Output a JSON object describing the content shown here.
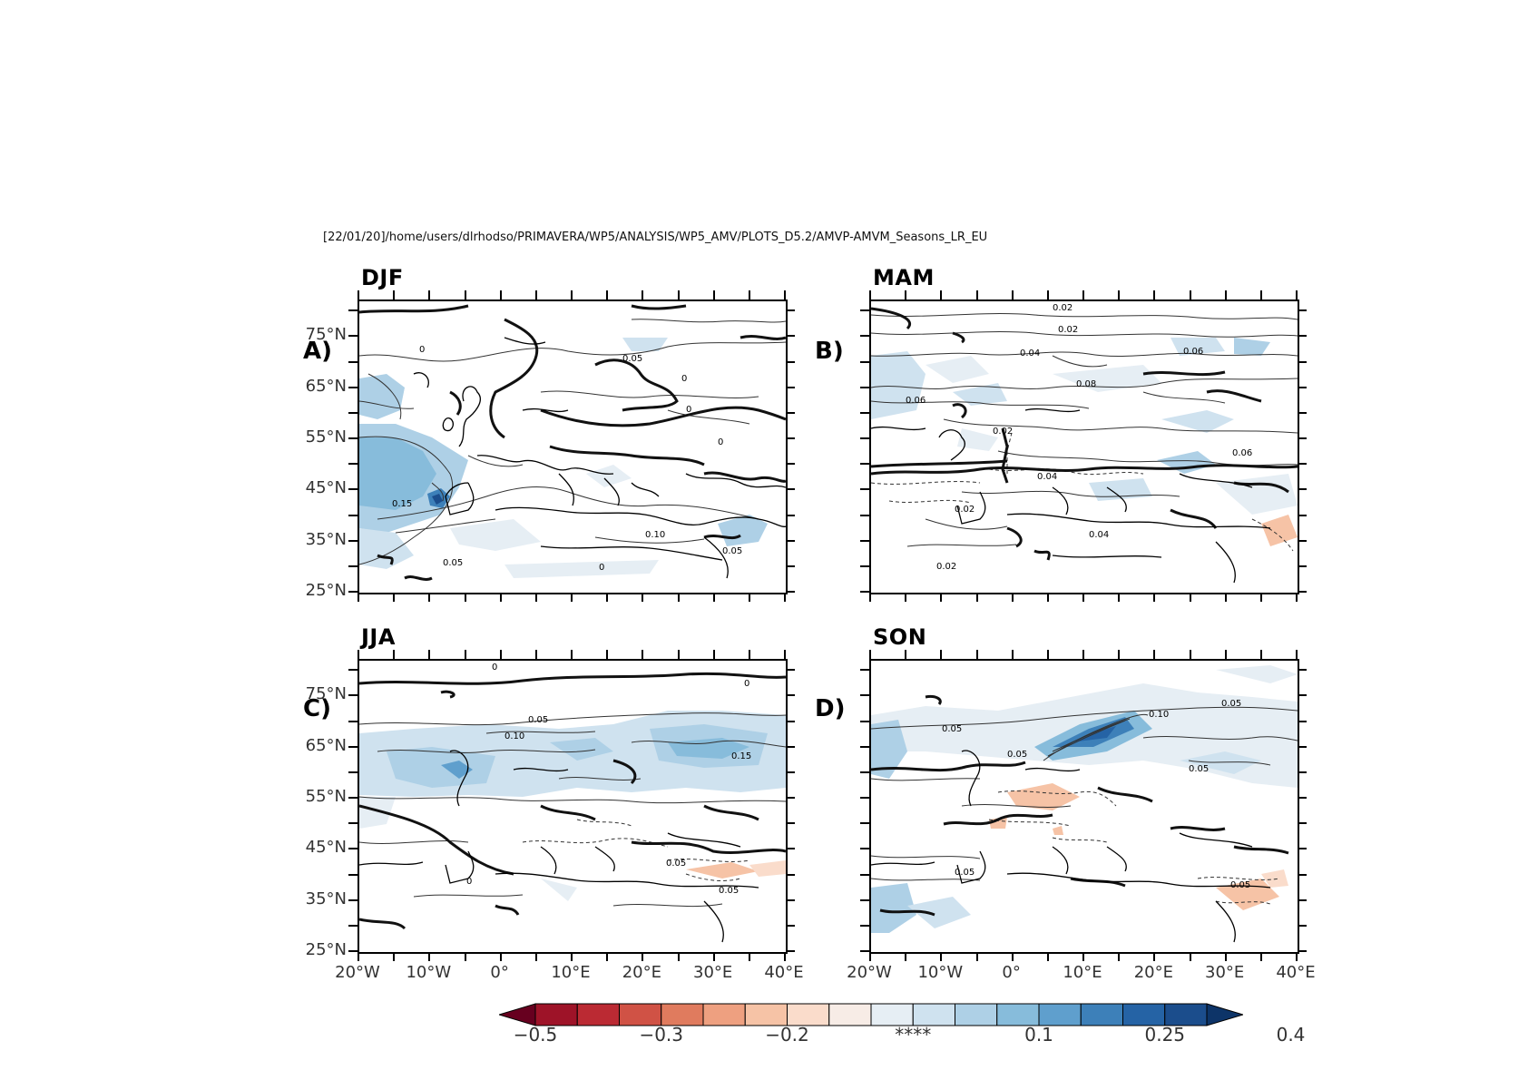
{
  "header_path": "[22/01/20]/home/users/dlrhodso/PRIMAVERA/WP5/ANALYSIS/WP5_AMV/PLOTS_D5.2/AMVP-AMVM_Seasons_LR_EU",
  "panels": [
    {
      "season": "DJF",
      "letter": "A)"
    },
    {
      "season": "MAM",
      "letter": "B)"
    },
    {
      "season": "JJA",
      "letter": "C)"
    },
    {
      "season": "SON",
      "letter": "D)"
    }
  ],
  "lat_labels": [
    "75°N",
    "65°N",
    "55°N",
    "45°N",
    "35°N",
    "25°N"
  ],
  "lon_labels": [
    "20°W",
    "10°W",
    "0°",
    "10°E",
    "20°E",
    "30°E",
    "40°E"
  ],
  "contour_labels": {
    "DJF": [
      "0",
      "0.05",
      "0",
      "0",
      "0",
      "0.15",
      "0.05",
      "0.05",
      "0.10",
      "0"
    ],
    "MAM": [
      "0.02",
      "0.02",
      "0.04",
      "0.06",
      "0.08",
      "0.02",
      "0.04",
      "0.06",
      "0.02",
      "0.04",
      "0.02",
      "0.06"
    ],
    "JJA": [
      "0",
      "0",
      "0.05",
      "0.10",
      "0.15",
      "0.05",
      "0.05",
      "0"
    ],
    "SON": [
      "0.05",
      "0.05",
      "0.10",
      "0.05",
      "0.05",
      "0.05",
      "0.05"
    ]
  },
  "colorbar": {
    "colors": [
      "#67001f",
      "#9e1328",
      "#bb2a33",
      "#d05245",
      "#e07b5e",
      "#eea080",
      "#f6c3a6",
      "#fadccb",
      "#f7ece6",
      "#e6eef4",
      "#cfe2ef",
      "#aed0e6",
      "#87bcdb",
      "#5f9fcd",
      "#3d80b9",
      "#2563a5",
      "#1b4d8c",
      "#0d3468"
    ],
    "labels": [
      {
        "text": "−0.5",
        "index": 1
      },
      {
        "text": "−0.3",
        "index": 4
      },
      {
        "text": "−0.2",
        "index": 7
      },
      {
        "text": "****",
        "index": 10
      },
      {
        "text": "0.1",
        "index": 13
      },
      {
        "text": "0.25",
        "index": 16
      },
      {
        "text": "0.4",
        "index": 19
      }
    ]
  }
}
